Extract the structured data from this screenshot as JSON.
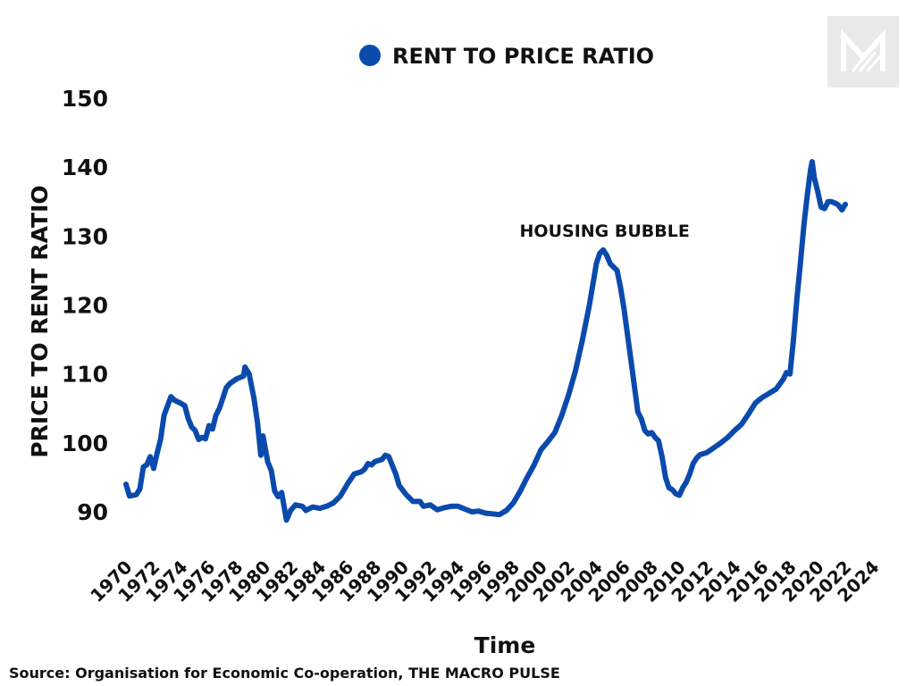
{
  "chart_data": {
    "type": "line",
    "legend": {
      "label": "RENT TO PRICE RATIO",
      "position": "top"
    },
    "ylabel": "PRICE TO RENT RATIO",
    "xlabel": "Time",
    "ylim": [
      90,
      150
    ],
    "yticks": [
      90,
      100,
      110,
      120,
      130,
      140,
      150
    ],
    "xticks": [
      "1970",
      "1972",
      "1974",
      "1976",
      "1978",
      "1980",
      "1982",
      "1984",
      "1986",
      "1988",
      "1990",
      "1992",
      "1994",
      "1996",
      "1998",
      "2000",
      "2002",
      "2004",
      "2006",
      "2008",
      "2010",
      "2012",
      "2014",
      "2016",
      "2018",
      "2020",
      "2022",
      "2024"
    ],
    "annotation": {
      "text": "HOUSING BUBBLE",
      "x": 2005.7
    },
    "grid": false,
    "series": [
      {
        "color": "#0a4aad",
        "points": [
          [
            1970.0,
            94.0
          ],
          [
            1970.25,
            92.3
          ],
          [
            1970.75,
            92.5
          ],
          [
            1971.0,
            93.3
          ],
          [
            1971.25,
            96.5
          ],
          [
            1971.5,
            96.8
          ],
          [
            1971.75,
            98.0
          ],
          [
            1972.0,
            96.3
          ],
          [
            1972.25,
            98.5
          ],
          [
            1972.5,
            100.5
          ],
          [
            1972.75,
            104.0
          ],
          [
            1973.25,
            106.7
          ],
          [
            1973.5,
            106.2
          ],
          [
            1974.0,
            105.7
          ],
          [
            1974.25,
            105.4
          ],
          [
            1974.5,
            103.5
          ],
          [
            1974.75,
            102.3
          ],
          [
            1975.0,
            101.8
          ],
          [
            1975.25,
            100.5
          ],
          [
            1975.5,
            100.8
          ],
          [
            1975.75,
            100.6
          ],
          [
            1976.0,
            102.5
          ],
          [
            1976.25,
            102.0
          ],
          [
            1976.5,
            104.0
          ],
          [
            1976.75,
            105.0
          ],
          [
            1977.0,
            106.5
          ],
          [
            1977.25,
            108.0
          ],
          [
            1977.5,
            108.6
          ],
          [
            1978.0,
            109.3
          ],
          [
            1978.5,
            109.7
          ],
          [
            1978.6,
            111.0
          ],
          [
            1978.9,
            110.0
          ],
          [
            1979.25,
            106.5
          ],
          [
            1979.5,
            103.0
          ],
          [
            1979.75,
            98.2
          ],
          [
            1979.9,
            101.0
          ],
          [
            1980.25,
            97.2
          ],
          [
            1980.5,
            96.0
          ],
          [
            1980.75,
            93.0
          ],
          [
            1981.0,
            92.2
          ],
          [
            1981.25,
            92.8
          ],
          [
            1981.6,
            88.8
          ],
          [
            1981.9,
            90.2
          ],
          [
            1982.25,
            91.0
          ],
          [
            1982.75,
            90.8
          ],
          [
            1983.0,
            90.2
          ],
          [
            1983.5,
            90.7
          ],
          [
            1984.0,
            90.5
          ],
          [
            1984.5,
            90.8
          ],
          [
            1985.0,
            91.3
          ],
          [
            1985.5,
            92.3
          ],
          [
            1986.0,
            94.0
          ],
          [
            1986.5,
            95.5
          ],
          [
            1987.0,
            95.8
          ],
          [
            1987.25,
            96.2
          ],
          [
            1987.5,
            97.0
          ],
          [
            1987.75,
            96.8
          ],
          [
            1988.0,
            97.3
          ],
          [
            1988.5,
            97.6
          ],
          [
            1988.75,
            98.2
          ],
          [
            1989.0,
            98.0
          ],
          [
            1989.5,
            95.5
          ],
          [
            1989.75,
            93.8
          ],
          [
            1990.25,
            92.5
          ],
          [
            1990.75,
            91.5
          ],
          [
            1991.25,
            91.5
          ],
          [
            1991.5,
            90.8
          ],
          [
            1992.0,
            91.0
          ],
          [
            1992.5,
            90.3
          ],
          [
            1993.0,
            90.6
          ],
          [
            1993.5,
            90.8
          ],
          [
            1994.0,
            90.8
          ],
          [
            1994.5,
            90.4
          ],
          [
            1995.0,
            90.0
          ],
          [
            1995.5,
            90.1
          ],
          [
            1996.0,
            89.8
          ],
          [
            1996.5,
            89.7
          ],
          [
            1997.0,
            89.6
          ],
          [
            1997.5,
            90.2
          ],
          [
            1998.0,
            91.3
          ],
          [
            1998.5,
            93.0
          ],
          [
            1999.0,
            95.0
          ],
          [
            1999.5,
            96.8
          ],
          [
            2000.0,
            99.0
          ],
          [
            2000.5,
            100.2
          ],
          [
            2001.0,
            101.5
          ],
          [
            2001.5,
            104.0
          ],
          [
            2002.0,
            107.0
          ],
          [
            2002.5,
            110.5
          ],
          [
            2003.0,
            115.0
          ],
          [
            2003.5,
            120.0
          ],
          [
            2004.0,
            126.0
          ],
          [
            2004.25,
            127.5
          ],
          [
            2004.5,
            128.0
          ],
          [
            2004.75,
            127.2
          ],
          [
            2005.0,
            126.0
          ],
          [
            2005.5,
            125.0
          ],
          [
            2005.75,
            122.5
          ],
          [
            2006.0,
            119.5
          ],
          [
            2006.5,
            112.0
          ],
          [
            2007.0,
            104.5
          ],
          [
            2007.25,
            103.5
          ],
          [
            2007.5,
            101.8
          ],
          [
            2007.75,
            101.3
          ],
          [
            2008.0,
            101.5
          ],
          [
            2008.25,
            100.8
          ],
          [
            2008.5,
            100.3
          ],
          [
            2008.75,
            98.0
          ],
          [
            2009.0,
            95.0
          ],
          [
            2009.25,
            93.5
          ],
          [
            2009.5,
            93.2
          ],
          [
            2009.75,
            92.6
          ],
          [
            2010.0,
            92.4
          ],
          [
            2010.25,
            93.5
          ],
          [
            2010.5,
            94.3
          ],
          [
            2010.75,
            95.5
          ],
          [
            2011.0,
            97.0
          ],
          [
            2011.25,
            97.8
          ],
          [
            2011.5,
            98.3
          ],
          [
            2012.0,
            98.6
          ],
          [
            2012.5,
            99.3
          ],
          [
            2013.0,
            100.0
          ],
          [
            2013.5,
            100.8
          ],
          [
            2014.0,
            101.8
          ],
          [
            2014.5,
            102.7
          ],
          [
            2015.0,
            104.2
          ],
          [
            2015.5,
            105.8
          ],
          [
            2016.0,
            106.6
          ],
          [
            2016.5,
            107.2
          ],
          [
            2017.0,
            107.8
          ],
          [
            2017.5,
            109.2
          ],
          [
            2017.75,
            110.2
          ],
          [
            2018.0,
            110.0
          ],
          [
            2018.25,
            115.0
          ],
          [
            2018.5,
            121.0
          ],
          [
            2018.75,
            126.0
          ],
          [
            2019.0,
            131.5
          ],
          [
            2019.25,
            136.0
          ],
          [
            2019.5,
            139.8
          ],
          [
            2019.6,
            140.8
          ],
          [
            2019.75,
            138.5
          ],
          [
            2020.0,
            136.5
          ],
          [
            2020.25,
            134.2
          ],
          [
            2020.5,
            134.0
          ],
          [
            2020.75,
            135.0
          ],
          [
            2021.0,
            135.0
          ],
          [
            2021.25,
            134.8
          ],
          [
            2021.5,
            134.5
          ],
          [
            2021.75,
            133.8
          ],
          [
            2022.0,
            134.6
          ]
        ]
      }
    ]
  },
  "source": "Source:  Organisation for Economic Co-operation, THE MACRO PULSE",
  "logo": {
    "name": "the-macro-pulse-logo"
  }
}
